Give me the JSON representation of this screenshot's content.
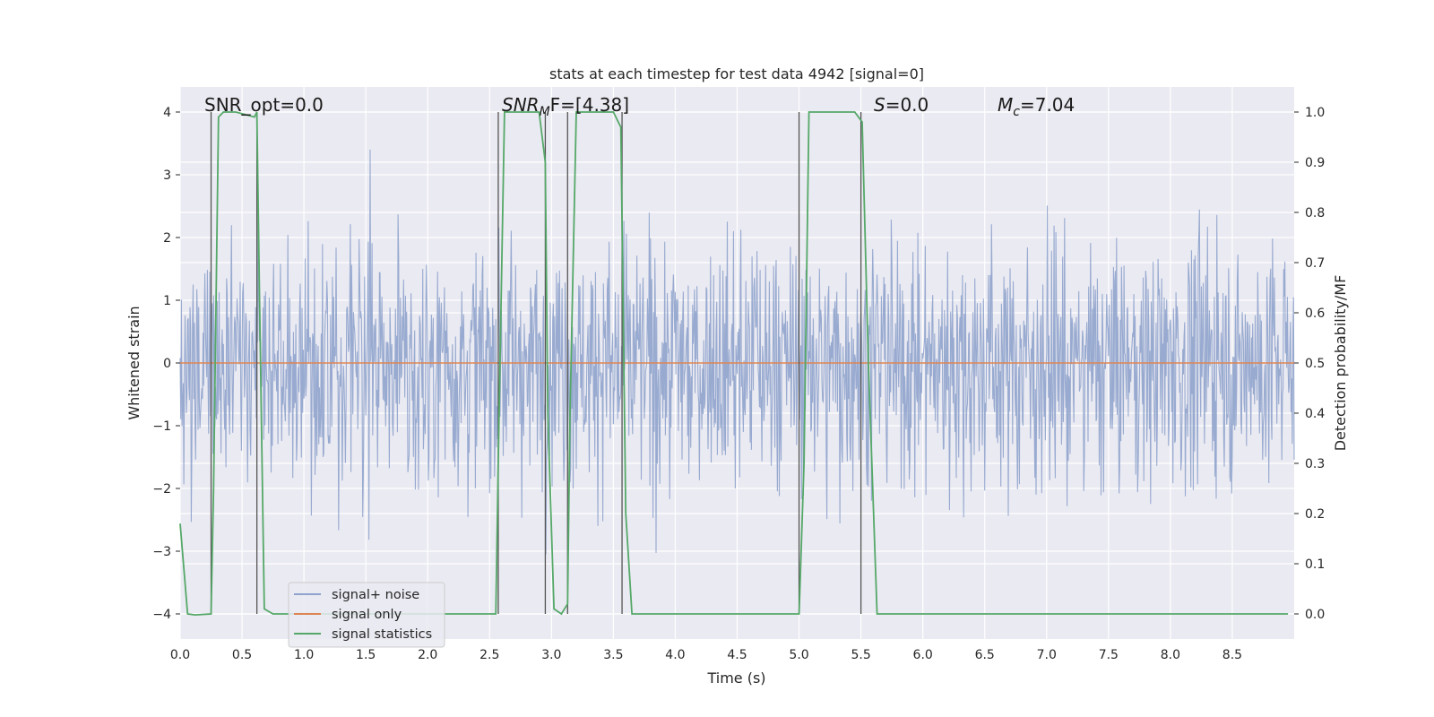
{
  "chart_data": {
    "type": "line",
    "title": "stats at each timestep for test data 4942 [signal=0]",
    "xlabel": "Time (s)",
    "ylabel": "Whitened strain",
    "ylabel_right": "Detection probability/MF",
    "xlim": [
      0,
      9.0
    ],
    "ylim": [
      -4.4,
      4.4
    ],
    "ylim_right": [
      -0.05,
      1.05
    ],
    "x_ticks": [
      0.0,
      0.5,
      1.0,
      1.5,
      2.0,
      2.5,
      3.0,
      3.5,
      4.0,
      4.5,
      5.0,
      5.5,
      6.0,
      6.5,
      7.0,
      7.5,
      8.0,
      8.5
    ],
    "x_tick_labels": [
      "0.0",
      "0.5",
      "1.0",
      "1.5",
      "2.0",
      "2.5",
      "3.0",
      "3.5",
      "4.0",
      "4.5",
      "5.0",
      "5.5",
      "6.0",
      "6.5",
      "7.0",
      "7.5",
      "8.0",
      "8.5"
    ],
    "y_ticks": [
      -4,
      -3,
      -2,
      -1,
      0,
      1,
      2,
      3,
      4
    ],
    "y_tick_labels": [
      "−4",
      "−3",
      "−2",
      "−1",
      "0",
      "1",
      "2",
      "3",
      "4"
    ],
    "y_ticks_right": [
      0.0,
      0.1,
      0.2,
      0.3,
      0.4,
      0.5,
      0.6,
      0.7,
      0.8,
      0.9,
      1.0
    ],
    "y_tick_labels_right": [
      "0.0",
      "0.1",
      "0.2",
      "0.3",
      "0.4",
      "0.5",
      "0.6",
      "0.7",
      "0.8",
      "0.9",
      "1.0"
    ],
    "grid": true,
    "legend_position": "lower-left",
    "annotations": {
      "snr_opt": "SNR_opt=0.0",
      "snr_mf_a": "SNR",
      "snr_mf_sub": "M",
      "snr_mf_b": "F=[4.38]",
      "s_a": "S",
      "s_b": "=0.0",
      "mc_a": "M",
      "mc_sub": "c",
      "mc_b": "=7.04"
    },
    "series": [
      {
        "name": "signal+ noise",
        "color": "#4c72b0",
        "note": "dense noise trace, approx. amplitude range -3.7 to 3.4",
        "envelope_x": [
          0.0,
          9.0
        ],
        "envelope_ymin": -3.7,
        "envelope_ymax": 3.4
      },
      {
        "name": "signal only",
        "color": "#dd8452",
        "x": [
          0.0,
          9.0
        ],
        "y": [
          0.0,
          0.0
        ]
      },
      {
        "name": "signal statistics",
        "color": "#55a868",
        "axis": "right",
        "x": [
          0.0,
          0.06,
          0.12,
          0.25,
          0.27,
          0.31,
          0.35,
          0.45,
          0.6,
          0.62,
          0.64,
          0.68,
          0.75,
          1.5,
          2.0,
          2.55,
          2.57,
          2.62,
          2.7,
          2.9,
          2.95,
          2.97,
          3.02,
          3.08,
          3.13,
          3.15,
          3.2,
          3.5,
          3.56,
          3.6,
          3.65,
          4.0,
          4.5,
          5.0,
          5.04,
          5.08,
          5.3,
          5.45,
          5.51,
          5.56,
          5.63,
          6.0,
          7.0,
          8.0,
          8.95
        ],
        "y": [
          0.18,
          0.0,
          -0.002,
          0.0,
          0.25,
          0.99,
          1.0,
          1.0,
          0.99,
          1.0,
          0.65,
          0.01,
          0.0,
          0.0,
          0.0,
          0.0,
          0.3,
          1.0,
          1.0,
          1.0,
          0.9,
          0.4,
          0.01,
          0.0,
          0.02,
          0.4,
          1.0,
          1.0,
          0.97,
          0.2,
          0.0,
          0.0,
          0.0,
          0.0,
          0.3,
          1.0,
          1.0,
          1.0,
          0.98,
          0.5,
          0.0,
          0.0,
          0.0,
          0.0,
          0.0
        ]
      }
    ],
    "vertical_markers": [
      0.25,
      0.62,
      2.57,
      2.95,
      3.13,
      3.57,
      5.0,
      5.5
    ]
  }
}
